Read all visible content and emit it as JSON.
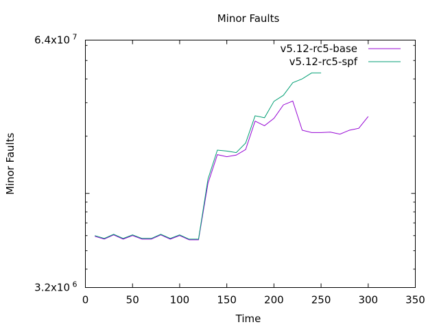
{
  "chart_data": {
    "type": "line",
    "title": "Minor Faults",
    "xlabel": "Time",
    "ylabel": "Minor Faults",
    "xlim": [
      0,
      350
    ],
    "ylim": [
      3200000,
      64000000
    ],
    "yscale": "log",
    "xticks": [
      0,
      50,
      100,
      150,
      200,
      250,
      300,
      350
    ],
    "yticks": [
      {
        "value": 3200000,
        "mantissa": "3.2x10",
        "exp": "6"
      },
      {
        "value": 64000000,
        "mantissa": "6.4x10",
        "exp": "7"
      }
    ],
    "grid": false,
    "legend_position": "top-right",
    "series": [
      {
        "name": "v5.12-rc5-base",
        "color": "#9400d3",
        "x": [
          10,
          20,
          30,
          40,
          50,
          60,
          70,
          80,
          90,
          100,
          110,
          120,
          130,
          140,
          150,
          160,
          170,
          180,
          190,
          200,
          210,
          220,
          230,
          240,
          250,
          260,
          270,
          280,
          290,
          300
        ],
        "y": [
          5950000,
          5750000,
          6050000,
          5750000,
          6000000,
          5750000,
          5750000,
          6050000,
          5750000,
          6000000,
          5700000,
          5700000,
          11300000,
          16000000,
          15600000,
          15900000,
          17000000,
          24000000,
          22700000,
          24800000,
          29200000,
          30600000,
          21500000,
          20900000,
          20900000,
          21000000,
          20500000,
          21500000,
          22000000,
          25400000
        ]
      },
      {
        "name": "v5.12-rc5-spf",
        "color": "#009e73",
        "x": [
          10,
          20,
          30,
          40,
          50,
          60,
          70,
          80,
          90,
          100,
          110,
          120,
          130,
          140,
          150,
          160,
          170,
          180,
          190,
          200,
          210,
          220,
          230,
          240,
          250
        ],
        "y": [
          6000000,
          5800000,
          6100000,
          5800000,
          6050000,
          5800000,
          5800000,
          6100000,
          5800000,
          6050000,
          5750000,
          5750000,
          11900000,
          16900000,
          16700000,
          16400000,
          18400000,
          25600000,
          25000000,
          30500000,
          32800000,
          38200000,
          40000000,
          43000000,
          43000000
        ]
      }
    ]
  }
}
